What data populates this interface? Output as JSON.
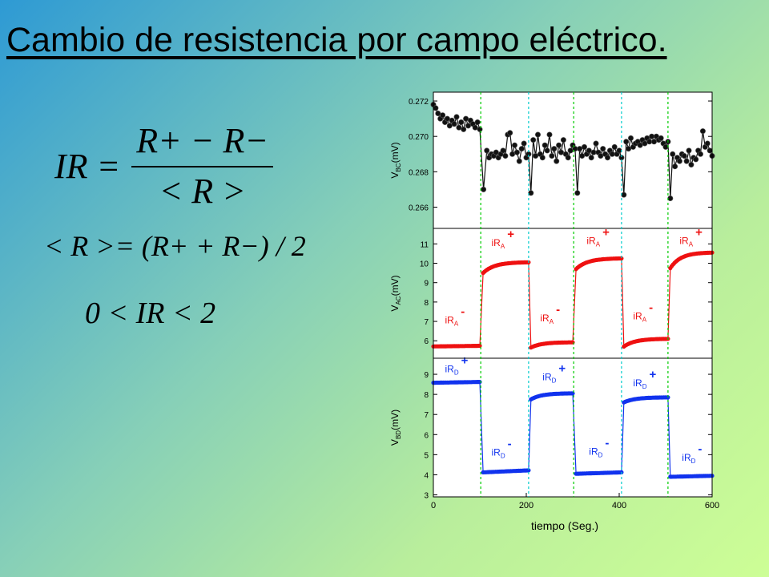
{
  "slide": {
    "title": "Cambio de resistencia por campo eléctrico.",
    "formula_ir_lhs": "IR =",
    "formula_ir_num": "R+ − R−",
    "formula_ir_den": "< R >",
    "formula_mean": "< R >= (R+ + R−) / 2",
    "formula_range": "0 < IR < 2"
  },
  "chart_data": {
    "type": "line",
    "xlabel": "tiempo (Seg.)",
    "xlim": [
      0,
      600
    ],
    "xticks": [
      "0",
      "200",
      "400",
      "600"
    ],
    "dashed_lines": [
      {
        "x": 102,
        "color": "#00cc00"
      },
      {
        "x": 205,
        "color": "#00cccc"
      },
      {
        "x": 302,
        "color": "#00cc00"
      },
      {
        "x": 405,
        "color": "#00cccc"
      },
      {
        "x": 505,
        "color": "#00cc00"
      }
    ],
    "panels": [
      {
        "name": "V_BC",
        "ylabel_main": "V",
        "ylabel_sub": "BC",
        "ylabel_unit": "(mV)",
        "color": "#111111",
        "ylim": [
          0.2648,
          0.2725
        ],
        "yticks": [
          "0.266",
          "0.268",
          "0.270",
          "0.272"
        ],
        "ytick_values": [
          0.266,
          0.268,
          0.27,
          0.272
        ],
        "x": [
          0,
          5,
          10,
          15,
          20,
          25,
          30,
          35,
          40,
          45,
          50,
          55,
          60,
          65,
          70,
          75,
          80,
          85,
          90,
          95,
          100,
          108,
          115,
          120,
          125,
          130,
          135,
          140,
          145,
          150,
          155,
          160,
          165,
          170,
          175,
          180,
          185,
          190,
          195,
          200,
          205,
          210,
          215,
          220,
          225,
          230,
          235,
          240,
          245,
          250,
          255,
          260,
          265,
          270,
          275,
          280,
          285,
          290,
          295,
          300,
          305,
          310,
          315,
          320,
          325,
          330,
          335,
          340,
          345,
          350,
          355,
          360,
          365,
          370,
          375,
          380,
          385,
          390,
          395,
          400,
          405,
          410,
          415,
          420,
          425,
          430,
          435,
          440,
          445,
          450,
          455,
          460,
          465,
          470,
          475,
          480,
          485,
          490,
          495,
          500,
          505,
          510,
          515,
          520,
          525,
          530,
          535,
          540,
          545,
          550,
          555,
          560,
          565,
          570,
          575,
          580,
          585,
          590,
          595,
          600
        ],
        "y": [
          0.2718,
          0.2716,
          0.2713,
          0.271,
          0.2712,
          0.2708,
          0.271,
          0.2706,
          0.2709,
          0.2707,
          0.2711,
          0.2705,
          0.2708,
          0.2704,
          0.271,
          0.2706,
          0.2709,
          0.2707,
          0.2705,
          0.2708,
          0.2704,
          0.267,
          0.2692,
          0.2688,
          0.269,
          0.2689,
          0.2691,
          0.2688,
          0.269,
          0.2692,
          0.2689,
          0.2701,
          0.2702,
          0.269,
          0.2695,
          0.2691,
          0.2686,
          0.2693,
          0.2696,
          0.2688,
          0.269,
          0.2668,
          0.2698,
          0.2689,
          0.2701,
          0.269,
          0.2688,
          0.2695,
          0.2692,
          0.2701,
          0.2689,
          0.2693,
          0.2686,
          0.2695,
          0.2691,
          0.2698,
          0.269,
          0.2688,
          0.2692,
          0.2695,
          0.2693,
          0.2668,
          0.2693,
          0.2689,
          0.2694,
          0.269,
          0.2692,
          0.2688,
          0.2691,
          0.2696,
          0.2691,
          0.2689,
          0.2693,
          0.269,
          0.2688,
          0.2692,
          0.269,
          0.2694,
          0.269,
          0.2692,
          0.2688,
          0.2667,
          0.2697,
          0.2693,
          0.2699,
          0.2694,
          0.2696,
          0.2697,
          0.2695,
          0.2698,
          0.2696,
          0.2699,
          0.2697,
          0.27,
          0.2697,
          0.27,
          0.2698,
          0.2699,
          0.2696,
          0.2694,
          0.2697,
          0.2665,
          0.269,
          0.2683,
          0.2688,
          0.2686,
          0.269,
          0.2689,
          0.2686,
          0.2692,
          0.2684,
          0.2688,
          0.2687,
          0.2692,
          0.269,
          0.2703,
          0.2694,
          0.2696,
          0.2692,
          0.2689
        ]
      },
      {
        "name": "V_AC",
        "ylabel_main": "V",
        "ylabel_sub": "AC",
        "ylabel_unit": "(mV)",
        "color": "#ee1111",
        "ylim": [
          5.1,
          11.8
        ],
        "yticks": [
          "6",
          "7",
          "8",
          "9",
          "10",
          "11"
        ],
        "ytick_values": [
          6,
          7,
          8,
          9,
          10,
          11
        ],
        "segments": [
          {
            "x0": 0,
            "x1": 100,
            "start": 5.71,
            "end": 5.74,
            "rise": 0
          },
          {
            "x0": 107,
            "x1": 205,
            "start": 9.5,
            "end": 10.05,
            "rise": 1
          },
          {
            "x0": 210,
            "x1": 300,
            "start": 5.65,
            "end": 5.92,
            "rise": 1
          },
          {
            "x0": 307,
            "x1": 405,
            "start": 9.7,
            "end": 10.25,
            "rise": 1
          },
          {
            "x0": 410,
            "x1": 505,
            "start": 5.7,
            "end": 6.1,
            "rise": 1
          },
          {
            "x0": 510,
            "x1": 600,
            "start": 9.75,
            "end": 10.55,
            "rise": 1
          }
        ],
        "annotations": [
          {
            "x": 25,
            "y": 6.9,
            "label": "iR",
            "sub": "A",
            "sign": "-"
          },
          {
            "x": 125,
            "y": 10.9,
            "label": "iR",
            "sub": "A",
            "sign": "+"
          },
          {
            "x": 230,
            "y": 7.0,
            "label": "iR",
            "sub": "A",
            "sign": "-"
          },
          {
            "x": 330,
            "y": 11.0,
            "label": "iR",
            "sub": "A",
            "sign": "+"
          },
          {
            "x": 430,
            "y": 7.1,
            "label": "iR",
            "sub": "A",
            "sign": "-"
          },
          {
            "x": 530,
            "y": 11.0,
            "label": "iR",
            "sub": "A",
            "sign": "+"
          }
        ]
      },
      {
        "name": "V_BD",
        "ylabel_main": "V",
        "ylabel_sub": "BD",
        "ylabel_unit": "(mV)",
        "color": "#1133ee",
        "ylim": [
          2.9,
          9.8
        ],
        "yticks": [
          "3",
          "4",
          "5",
          "6",
          "7",
          "8",
          "9"
        ],
        "ytick_values": [
          3,
          4,
          5,
          6,
          7,
          8,
          9
        ],
        "segments": [
          {
            "x0": 0,
            "x1": 100,
            "start": 8.58,
            "end": 8.62,
            "rise": 0
          },
          {
            "x0": 107,
            "x1": 205,
            "start": 4.12,
            "end": 4.22,
            "rise": 0
          },
          {
            "x0": 210,
            "x1": 300,
            "start": 7.75,
            "end": 8.05,
            "rise": 1
          },
          {
            "x0": 307,
            "x1": 405,
            "start": 4.05,
            "end": 4.12,
            "rise": 0
          },
          {
            "x0": 410,
            "x1": 505,
            "start": 7.6,
            "end": 7.85,
            "rise": 1
          },
          {
            "x0": 510,
            "x1": 600,
            "start": 3.9,
            "end": 3.95,
            "rise": 0
          }
        ],
        "annotations": [
          {
            "x": 25,
            "y": 9.1,
            "label": "iR",
            "sub": "D",
            "sign": "+"
          },
          {
            "x": 125,
            "y": 4.95,
            "label": "iR",
            "sub": "D",
            "sign": "-"
          },
          {
            "x": 235,
            "y": 8.7,
            "label": "iR",
            "sub": "D",
            "sign": "+"
          },
          {
            "x": 335,
            "y": 5.0,
            "label": "iR",
            "sub": "D",
            "sign": "-"
          },
          {
            "x": 430,
            "y": 8.4,
            "label": "iR",
            "sub": "D",
            "sign": "+"
          },
          {
            "x": 535,
            "y": 4.7,
            "label": "iR",
            "sub": "D",
            "sign": "-"
          }
        ]
      }
    ]
  }
}
